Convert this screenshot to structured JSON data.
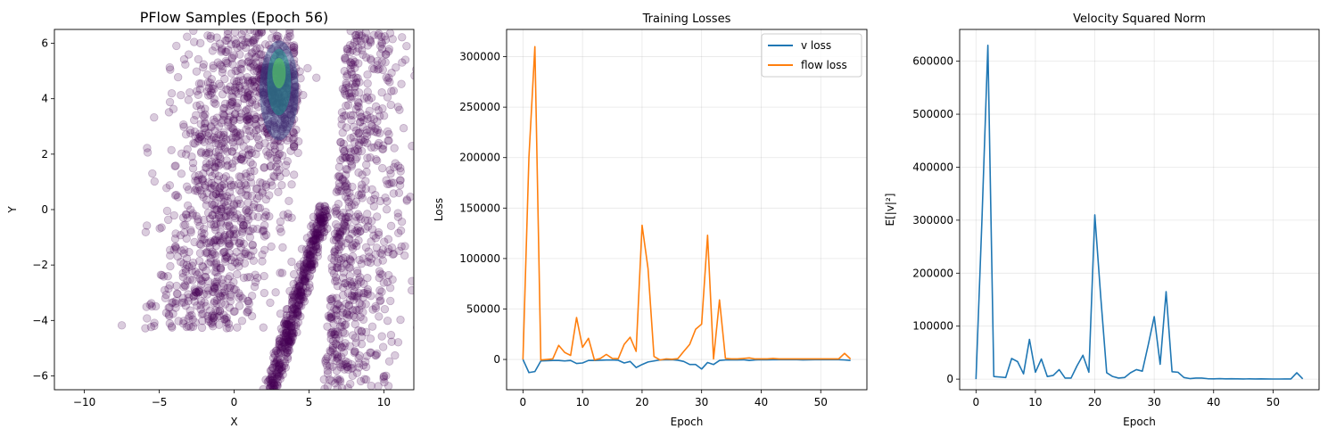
{
  "chart_data": [
    {
      "type": "scatter",
      "title": "PFlow Samples (Epoch 56)",
      "xlabel": "X",
      "ylabel": "Y",
      "xlim": [
        -12,
        12
      ],
      "ylim": [
        -6.5,
        6.5
      ],
      "xticks": [
        -10,
        -5,
        0,
        5,
        10
      ],
      "yticks": [
        -6,
        -4,
        -2,
        0,
        2,
        4,
        6
      ],
      "grid": false,
      "point_color": "#440154",
      "density_colors": [
        "#3b528b",
        "#21918c",
        "#5ec962"
      ],
      "clusters": [
        {
          "description": "broad band",
          "x_range": [
            -7.5,
            4
          ],
          "y_range": [
            -4.3,
            6.5
          ]
        },
        {
          "description": "diagonal streak",
          "from": [
            2.5,
            -6.5
          ],
          "to": [
            6,
            0
          ]
        },
        {
          "description": "right band",
          "x_range": [
            6,
            12
          ],
          "y_range": [
            -6.5,
            6.5
          ]
        },
        {
          "description": "dense core",
          "center": [
            3,
            5.2
          ]
        }
      ]
    },
    {
      "type": "line",
      "title": "Training Losses",
      "xlabel": "Epoch",
      "ylabel": "Loss",
      "xlim": [
        -2.75,
        57.75
      ],
      "ylim": [
        -30000,
        327000
      ],
      "xticks": [
        0,
        10,
        20,
        30,
        40,
        50
      ],
      "yticks": [
        0,
        50000,
        100000,
        150000,
        200000,
        250000,
        300000
      ],
      "grid": true,
      "legend": "top-right",
      "series": [
        {
          "name": "v loss",
          "color": "#1f77b4",
          "x": [
            0,
            1,
            2,
            3,
            4,
            5,
            6,
            7,
            8,
            9,
            10,
            11,
            12,
            13,
            14,
            15,
            16,
            17,
            18,
            19,
            20,
            21,
            22,
            23,
            24,
            25,
            26,
            27,
            28,
            29,
            30,
            31,
            32,
            33,
            34,
            35,
            36,
            37,
            38,
            39,
            40,
            41,
            42,
            43,
            44,
            45,
            46,
            47,
            48,
            49,
            50,
            51,
            52,
            53,
            54,
            55
          ],
          "values": [
            0,
            -13000,
            -12000,
            -1500,
            -1200,
            -1000,
            -1000,
            -1500,
            -1000,
            -4000,
            -3500,
            -1000,
            -1000,
            -800,
            -600,
            -500,
            -800,
            -3500,
            -2000,
            -8000,
            -5000,
            -2500,
            -1500,
            -500,
            -300,
            -300,
            -800,
            -2000,
            -5000,
            -5000,
            -9500,
            -3000,
            -5000,
            -1000,
            -500,
            -300,
            -500,
            -300,
            -1000,
            -500,
            -200,
            -300,
            -200,
            -200,
            -200,
            -200,
            -200,
            -500,
            -300,
            -200,
            -200,
            -200,
            -200,
            -200,
            -500,
            -1000
          ]
        },
        {
          "name": "flow loss",
          "color": "#ff7f0e",
          "x": [
            0,
            1,
            2,
            3,
            4,
            5,
            6,
            7,
            8,
            9,
            10,
            11,
            12,
            13,
            14,
            15,
            16,
            17,
            18,
            19,
            20,
            21,
            22,
            23,
            24,
            25,
            26,
            27,
            28,
            29,
            30,
            31,
            32,
            33,
            34,
            35,
            36,
            37,
            38,
            39,
            40,
            41,
            42,
            43,
            44,
            45,
            46,
            47,
            48,
            49,
            50,
            51,
            52,
            53,
            54,
            55
          ],
          "values": [
            0,
            200000,
            310000,
            -500,
            0,
            500,
            14000,
            7000,
            4000,
            41500,
            12000,
            21000,
            -500,
            1000,
            5000,
            1000,
            800,
            15000,
            22000,
            8000,
            133000,
            90000,
            3000,
            -500,
            500,
            200,
            800,
            8000,
            15000,
            30000,
            35000,
            123000,
            500,
            59000,
            1000,
            500,
            500,
            1000,
            1500,
            500,
            500,
            500,
            1000,
            500,
            500,
            500,
            500,
            500,
            500,
            500,
            500,
            500,
            500,
            500,
            6000,
            500
          ]
        }
      ]
    },
    {
      "type": "line",
      "title": "Velocity Squared Norm",
      "xlabel": "Epoch",
      "ylabel": "E[|v|²]",
      "xlim": [
        -2.75,
        57.75
      ],
      "ylim": [
        -20000,
        660000
      ],
      "xticks": [
        0,
        10,
        20,
        30,
        40,
        50
      ],
      "yticks": [
        0,
        100000,
        200000,
        300000,
        400000,
        500000,
        600000
      ],
      "grid": true,
      "series": [
        {
          "color": "#1f77b4",
          "x": [
            0,
            1,
            2,
            3,
            4,
            5,
            6,
            7,
            8,
            9,
            10,
            11,
            12,
            13,
            14,
            15,
            16,
            17,
            18,
            19,
            20,
            21,
            22,
            23,
            24,
            25,
            26,
            27,
            28,
            29,
            30,
            31,
            32,
            33,
            34,
            35,
            36,
            37,
            38,
            39,
            40,
            41,
            42,
            43,
            44,
            45,
            46,
            47,
            48,
            49,
            50,
            51,
            52,
            53,
            54,
            55
          ],
          "values": [
            0,
            300000,
            630000,
            5000,
            4000,
            3000,
            39000,
            33000,
            10000,
            75000,
            13000,
            38000,
            5000,
            7000,
            18000,
            2000,
            2000,
            25000,
            45000,
            13000,
            310000,
            155000,
            12000,
            5000,
            2000,
            3000,
            12000,
            18000,
            15000,
            65000,
            118000,
            28000,
            165000,
            14000,
            13000,
            3000,
            1000,
            2000,
            2000,
            800,
            500,
            1000,
            500,
            800,
            500,
            300,
            500,
            300,
            500,
            300,
            200,
            200,
            300,
            300,
            12000,
            500
          ]
        }
      ]
    }
  ]
}
